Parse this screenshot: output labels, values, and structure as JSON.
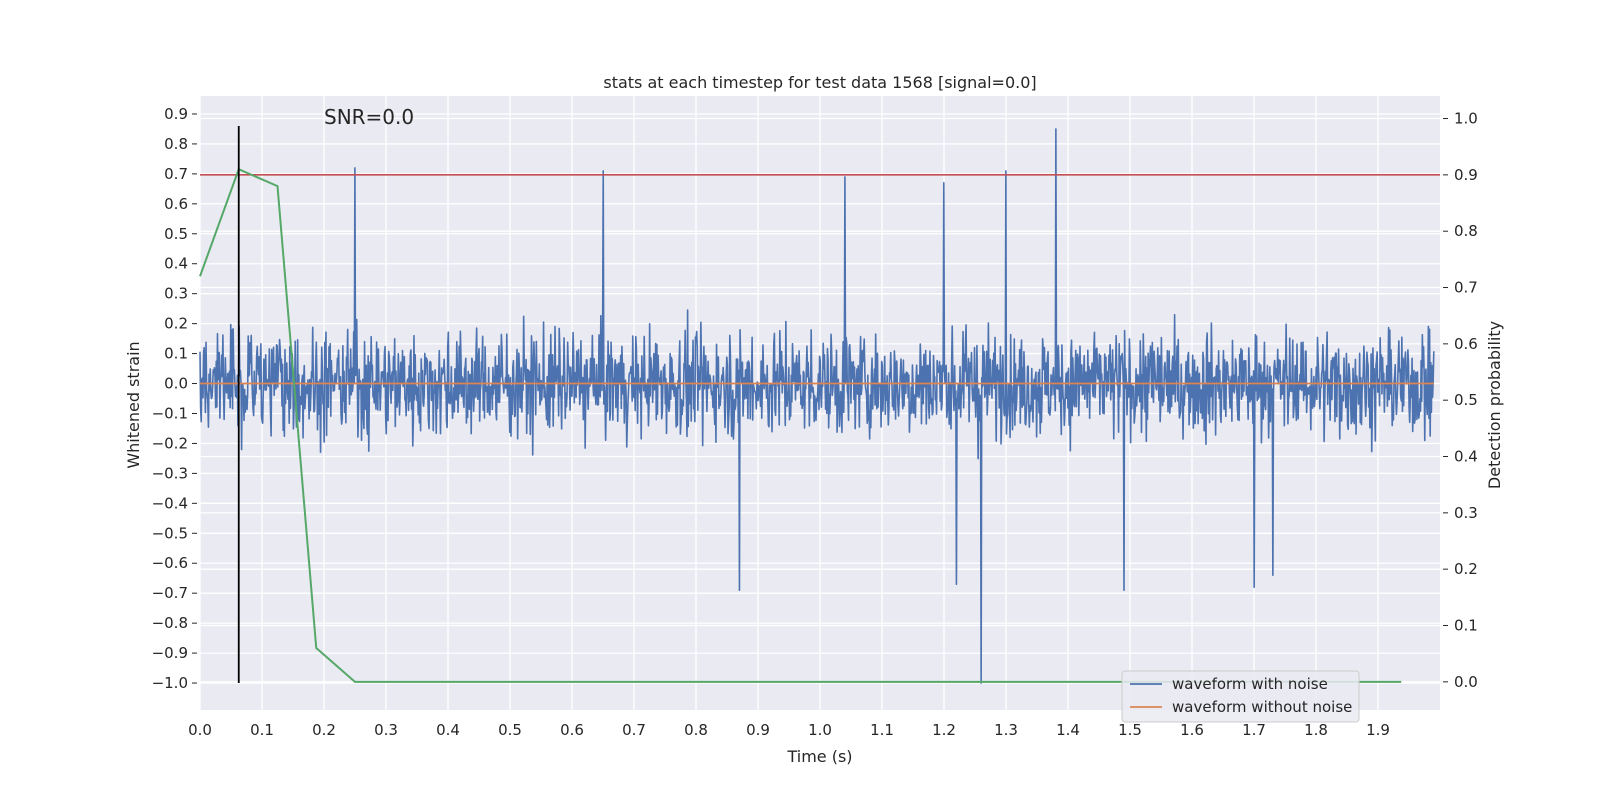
{
  "chart_data": {
    "type": "line",
    "title": "stats at each timestep for test data 1568 [signal=0.0]",
    "xlabel": "Time (s)",
    "ylabel_left": "Whitened strain",
    "ylabel_right": "Detection probability",
    "annotation": "SNR=0.0",
    "xlim": [
      0.0,
      2.0
    ],
    "ylim_left": [
      -1.09,
      0.96
    ],
    "ylim_right": [
      -0.05,
      1.04
    ],
    "x_ticks": [
      0.0,
      0.1,
      0.2,
      0.3,
      0.4,
      0.5,
      0.6,
      0.7,
      0.8,
      0.9,
      1.0,
      1.1,
      1.2,
      1.3,
      1.4,
      1.5,
      1.6,
      1.7,
      1.8,
      1.9
    ],
    "y_ticks_left": [
      0.9,
      0.8,
      0.7,
      0.6,
      0.5,
      0.4,
      0.3,
      0.2,
      0.1,
      0.0,
      -0.1,
      -0.2,
      -0.3,
      -0.4,
      -0.5,
      -0.6,
      -0.7,
      -0.8,
      -0.9,
      -1.0
    ],
    "y_ticks_right": [
      1.0,
      0.9,
      0.8,
      0.7,
      0.6,
      0.5,
      0.4,
      0.3,
      0.2,
      0.1,
      0.0
    ],
    "grid": true,
    "legend_position": "lower-right",
    "colors": {
      "noise": "#4c72b0",
      "clean": "#dd8452",
      "probability": "#55a868",
      "threshold": "#c44e52",
      "marker": "#000000",
      "plot_bg": "#eaeaf2",
      "grid": "#ffffff"
    },
    "series": [
      {
        "name": "waveform with noise",
        "axis": "left",
        "description_points": "noisy strain samples, roughly ±0.5 with spikes",
        "notable_peaks": [
          {
            "x": 0.25,
            "y": 0.72
          },
          {
            "x": 0.65,
            "y": 0.71
          },
          {
            "x": 1.04,
            "y": 0.69
          },
          {
            "x": 1.2,
            "y": 0.67
          },
          {
            "x": 1.3,
            "y": 0.71
          },
          {
            "x": 1.38,
            "y": 0.85
          }
        ],
        "notable_troughs": [
          {
            "x": 0.87,
            "y": -0.69
          },
          {
            "x": 1.22,
            "y": -0.67
          },
          {
            "x": 1.26,
            "y": -1.0
          },
          {
            "x": 1.49,
            "y": -0.69
          },
          {
            "x": 1.7,
            "y": -0.68
          },
          {
            "x": 1.73,
            "y": -0.64
          }
        ]
      },
      {
        "name": "waveform without noise",
        "axis": "left",
        "x": [
          0.0,
          1.99
        ],
        "y": [
          0.0,
          0.0
        ]
      },
      {
        "name": "",
        "axis": "right",
        "x": [
          0.0,
          0.0625,
          0.125,
          0.1875,
          0.25,
          1.9375
        ],
        "y": [
          0.72,
          0.91,
          0.88,
          0.06,
          0.0,
          0.0
        ]
      }
    ],
    "threshold_line": {
      "axis": "right",
      "y": 0.9
    },
    "marker_line": {
      "x": 0.0625,
      "axis": "left",
      "y_range": [
        -1.0,
        0.86
      ]
    }
  }
}
